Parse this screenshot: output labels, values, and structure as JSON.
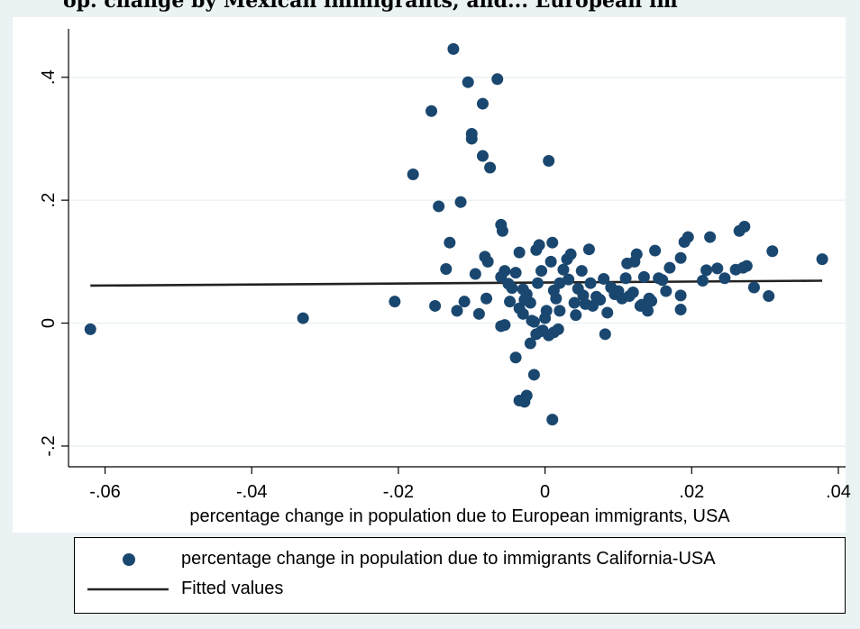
{
  "title": "op. change by Mexican immigrants, and... European im",
  "colors": {
    "background": "#eaf2f3",
    "plot_area": "#ffffff",
    "grid": "#eaf2f3",
    "marker": "#1a476f",
    "fit_line": "#222222"
  },
  "chart_data": {
    "type": "scatter",
    "xlabel": "percentage change in population due to European immigrants, USA",
    "ylabel": "",
    "xlim": [
      -0.064,
      0.04
    ],
    "ylim": [
      -0.225,
      0.47
    ],
    "x_ticks": [
      {
        "value": -0.06,
        "label": "-.06"
      },
      {
        "value": -0.04,
        "label": "-.04"
      },
      {
        "value": -0.02,
        "label": "-.02"
      },
      {
        "value": 0,
        "label": "0"
      },
      {
        "value": 0.02,
        "label": ".02"
      },
      {
        "value": 0.04,
        "label": ".04"
      }
    ],
    "y_ticks": [
      {
        "value": -0.2,
        "label": "-.2"
      },
      {
        "value": 0,
        "label": "0"
      },
      {
        "value": 0.2,
        "label": ".2"
      },
      {
        "value": 0.4,
        "label": ".4"
      }
    ],
    "grid": true,
    "legend_position": "bottom",
    "series": [
      {
        "name": "percentage change in population due to immigrants California-USA",
        "kind": "scatter",
        "points": [
          [
            -0.062,
            -0.01
          ],
          [
            -0.033,
            0.008
          ],
          [
            -0.0205,
            0.035
          ],
          [
            -0.018,
            0.242
          ],
          [
            -0.0155,
            0.345
          ],
          [
            -0.015,
            0.028
          ],
          [
            -0.0145,
            0.19
          ],
          [
            -0.0135,
            0.088
          ],
          [
            -0.013,
            0.131
          ],
          [
            -0.0125,
            0.446
          ],
          [
            -0.012,
            0.02
          ],
          [
            -0.0115,
            0.197
          ],
          [
            -0.011,
            0.035
          ],
          [
            -0.0105,
            0.392
          ],
          [
            -0.01,
            0.3
          ],
          [
            -0.01,
            0.308
          ],
          [
            -0.0095,
            0.08
          ],
          [
            -0.009,
            0.015
          ],
          [
            -0.0085,
            0.272
          ],
          [
            -0.0085,
            0.357
          ],
          [
            -0.0082,
            0.108
          ],
          [
            -0.008,
            0.04
          ],
          [
            -0.0078,
            0.1
          ],
          [
            -0.0075,
            0.253
          ],
          [
            -0.0065,
            0.397
          ],
          [
            -0.006,
            0.075
          ],
          [
            -0.006,
            0.16
          ],
          [
            -0.0058,
            0.15
          ],
          [
            -0.0055,
            0.085
          ],
          [
            -0.005,
            0.064
          ],
          [
            -0.0048,
            0.035
          ],
          [
            -0.0045,
            0.057
          ],
          [
            -0.004,
            0.082
          ],
          [
            -0.0035,
            0.115
          ],
          [
            -0.0035,
            0.024
          ],
          [
            -0.003,
            0.055
          ],
          [
            -0.003,
            0.015
          ],
          [
            -0.0028,
            0.038
          ],
          [
            -0.0025,
            0.047
          ],
          [
            -0.002,
            0.033
          ],
          [
            -0.0018,
            0.004
          ],
          [
            -0.0015,
            0.002
          ],
          [
            -0.0012,
            0.119
          ],
          [
            -0.001,
            0.065
          ],
          [
            -0.0008,
            0.127
          ],
          [
            -0.0005,
            0.085
          ],
          [
            -0.0003,
            -0.012
          ],
          [
            0,
            0.008
          ],
          [
            0.0002,
            0.02
          ],
          [
            0.0005,
            0.264
          ],
          [
            0.0008,
            0.1
          ],
          [
            0.001,
            0.131
          ],
          [
            0.0012,
            0.053
          ],
          [
            0.0015,
            0.04
          ],
          [
            0.002,
            0.02
          ],
          [
            0.002,
            0.065
          ],
          [
            0.0025,
            0.087
          ],
          [
            0.003,
            0.104
          ],
          [
            0.0032,
            0.071
          ],
          [
            0.0035,
            0.112
          ],
          [
            0.004,
            0.033
          ],
          [
            0.0042,
            0.013
          ],
          [
            0.0045,
            0.056
          ],
          [
            0.005,
            0.085
          ],
          [
            0.0052,
            0.045
          ],
          [
            0.0055,
            0.031
          ],
          [
            0.006,
            0.12
          ],
          [
            0.0062,
            0.065
          ],
          [
            0.0065,
            0.028
          ],
          [
            0.007,
            0.043
          ],
          [
            0.0075,
            0.038
          ],
          [
            0.008,
            0.072
          ],
          [
            0.0082,
            -0.018
          ],
          [
            0.0085,
            0.017
          ],
          [
            0.009,
            0.058
          ],
          [
            0.0095,
            0.047
          ],
          [
            0.01,
            0.052
          ],
          [
            0.0105,
            0.04
          ],
          [
            0.011,
            0.073
          ],
          [
            0.0112,
            0.097
          ],
          [
            0.0115,
            0.044
          ],
          [
            0.012,
            0.05
          ],
          [
            0.0122,
            0.1
          ],
          [
            0.0125,
            0.112
          ],
          [
            0.013,
            0.028
          ],
          [
            0.0132,
            0.03
          ],
          [
            0.0135,
            0.075
          ],
          [
            0.014,
            0.02
          ],
          [
            0.0142,
            0.04
          ],
          [
            0.0145,
            0.036
          ],
          [
            0.015,
            0.118
          ],
          [
            0.0155,
            0.073
          ],
          [
            0.016,
            0.07
          ],
          [
            0.0165,
            0.052
          ],
          [
            0.017,
            0.09
          ],
          [
            0.0185,
            0.106
          ],
          [
            0.0185,
            0.045
          ],
          [
            0.0185,
            0.022
          ],
          [
            0.019,
            0.132
          ],
          [
            0.0195,
            0.14
          ],
          [
            0.0215,
            0.069
          ],
          [
            0.022,
            0.086
          ],
          [
            0.0225,
            0.14
          ],
          [
            0.0235,
            0.089
          ],
          [
            0.0245,
            0.073
          ],
          [
            0.026,
            0.087
          ],
          [
            0.0265,
            0.15
          ],
          [
            0.027,
            0.09
          ],
          [
            0.0272,
            0.157
          ],
          [
            0.0275,
            0.093
          ],
          [
            0.0285,
            0.058
          ],
          [
            0.0305,
            0.044
          ],
          [
            0.031,
            0.117
          ],
          [
            0.0378,
            0.104
          ],
          [
            -0.004,
            -0.056
          ],
          [
            -0.0035,
            -0.126
          ],
          [
            -0.0028,
            -0.128
          ],
          [
            -0.0025,
            -0.118
          ],
          [
            -0.0015,
            -0.084
          ],
          [
            0.001,
            -0.157
          ],
          [
            -0.002,
            -0.033
          ],
          [
            -0.0012,
            -0.018
          ],
          [
            -0.0005,
            -0.013
          ],
          [
            0.0005,
            -0.02
          ],
          [
            0.0012,
            -0.015
          ],
          [
            0.0018,
            -0.01
          ],
          [
            -0.006,
            -0.005
          ],
          [
            -0.0055,
            -0.003
          ]
        ]
      },
      {
        "name": "Fitted values",
        "kind": "line",
        "points": [
          [
            -0.062,
            0.061
          ],
          [
            0.0378,
            0.069
          ]
        ]
      }
    ]
  }
}
